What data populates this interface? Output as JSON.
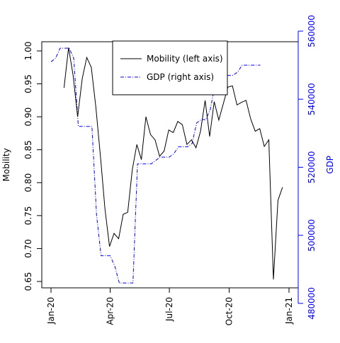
{
  "chart_data": {
    "type": "line",
    "x_tick_labels": [
      "Jan-20",
      "Apr-20",
      "Jul-20",
      "Oct-20",
      "Jan-21"
    ],
    "x_tick_dates": [
      "2020-01-01",
      "2020-04-01",
      "2020-07-01",
      "2020-10-01",
      "2021-01-01"
    ],
    "xlim": [
      "2020-01-01",
      "2021-01-01"
    ],
    "ylabel": "Mobility",
    "ylabel_right": "GDP",
    "ylim": [
      0.65,
      1.0
    ],
    "ylim_right": [
      480000,
      560000
    ],
    "y_ticks": [
      "0.65",
      "0.70",
      "0.75",
      "0.80",
      "0.85",
      "0.90",
      "0.95",
      "1.00"
    ],
    "y_ticks_right": [
      "480000",
      "500000",
      "520000",
      "540000",
      "560000"
    ],
    "grid": false,
    "legend_position": "top-center",
    "colors": {
      "mobility": "#000000",
      "gdp": "#0000ff",
      "right_axis": "#0000ff"
    },
    "series": [
      {
        "name": "Mobility (left axis)",
        "axis": "left",
        "style": "solid",
        "x": [
          "2020-01-21",
          "2020-01-28",
          "2020-02-04",
          "2020-02-11",
          "2020-02-18",
          "2020-02-25",
          "2020-03-03",
          "2020-03-10",
          "2020-03-17",
          "2020-03-24",
          "2020-03-31",
          "2020-04-07",
          "2020-04-14",
          "2020-04-21",
          "2020-04-28",
          "2020-05-05",
          "2020-05-12",
          "2020-05-19",
          "2020-05-26",
          "2020-06-02",
          "2020-06-09",
          "2020-06-16",
          "2020-06-23",
          "2020-06-30",
          "2020-07-07",
          "2020-07-14",
          "2020-07-21",
          "2020-07-28",
          "2020-08-04",
          "2020-08-11",
          "2020-08-18",
          "2020-08-25",
          "2020-09-01",
          "2020-09-08",
          "2020-09-15",
          "2020-09-22",
          "2020-09-29",
          "2020-10-06",
          "2020-10-13",
          "2020-10-20",
          "2020-10-27",
          "2020-11-03",
          "2020-11-10",
          "2020-11-17",
          "2020-11-24",
          "2020-12-01",
          "2020-12-08",
          "2020-12-15",
          "2020-12-22",
          "2020-12-29"
        ],
        "values": [
          0.944,
          1.005,
          0.963,
          0.9,
          0.958,
          0.99,
          0.975,
          0.915,
          0.84,
          0.76,
          0.703,
          0.723,
          0.715,
          0.752,
          0.755,
          0.82,
          0.858,
          0.835,
          0.9,
          0.873,
          0.865,
          0.84,
          0.848,
          0.88,
          0.876,
          0.893,
          0.888,
          0.858,
          0.865,
          0.853,
          0.878,
          0.925,
          0.87,
          0.923,
          0.895,
          0.92,
          0.945,
          0.947,
          0.918,
          0.922,
          0.925,
          0.897,
          0.878,
          0.882,
          0.855,
          0.865,
          0.653,
          0.773,
          0.793,
          null
        ]
      },
      {
        "name": "GDP (right axis)",
        "axis": "right",
        "style": "dashdot",
        "x": [
          "2020-01-01",
          "2020-01-08",
          "2020-01-15",
          "2020-01-22",
          "2020-01-29",
          "2020-02-05",
          "2020-02-12",
          "2020-02-19",
          "2020-02-26",
          "2020-03-04",
          "2020-03-11",
          "2020-03-18",
          "2020-03-25",
          "2020-04-01",
          "2020-04-08",
          "2020-04-15",
          "2020-04-22",
          "2020-04-29",
          "2020-05-06",
          "2020-05-13",
          "2020-05-20",
          "2020-05-27",
          "2020-06-03",
          "2020-06-10",
          "2020-06-17",
          "2020-06-24",
          "2020-07-01",
          "2020-07-08",
          "2020-07-15",
          "2020-07-22",
          "2020-07-29",
          "2020-08-05",
          "2020-08-12",
          "2020-08-19",
          "2020-08-26",
          "2020-09-02",
          "2020-09-09",
          "2020-09-16",
          "2020-09-23",
          "2020-09-30",
          "2020-10-07",
          "2020-10-14",
          "2020-10-21",
          "2020-10-28",
          "2020-11-04",
          "2020-11-11",
          "2020-11-18"
        ],
        "values": [
          551000,
          552000,
          555000,
          555000,
          555000,
          552000,
          532000,
          532000,
          532000,
          532000,
          506000,
          494000,
          494000,
          494000,
          491000,
          486000,
          486000,
          486000,
          486000,
          521000,
          521000,
          521000,
          521000,
          522000,
          523000,
          523000,
          523000,
          524000,
          526000,
          526000,
          526000,
          527000,
          533000,
          534000,
          534000,
          537000,
          544000,
          546000,
          547000,
          547000,
          547000,
          548000,
          550000,
          550000,
          550000,
          550000,
          550000
        ]
      }
    ]
  }
}
